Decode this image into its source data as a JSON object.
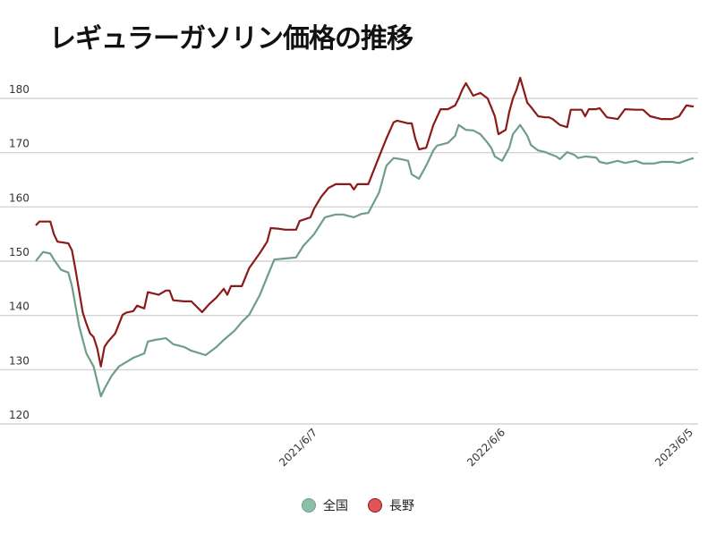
{
  "chart_data": {
    "type": "line",
    "title": "レギュラーガソリン価格の推移",
    "xlabel": "",
    "ylabel": "",
    "xlim": [
      0,
      182
    ],
    "ylim": [
      120,
      184
    ],
    "yticks": [
      120,
      130,
      140,
      150,
      160,
      170,
      180
    ],
    "xticks": [
      {
        "week": 78,
        "label": "2021/6/7"
      },
      {
        "week": 130,
        "label": "2022/6/6"
      },
      {
        "week": 182,
        "label": "2023/6/5"
      }
    ],
    "grid": true,
    "legend_position": "bottom",
    "series": [
      {
        "name": "全国",
        "color": "#6e9e88",
        "fill": "#8cc0a6",
        "points": [
          [
            0,
            150.0
          ],
          [
            2,
            151.7
          ],
          [
            4,
            151.4
          ],
          [
            5,
            150.3
          ],
          [
            7,
            148.4
          ],
          [
            9,
            147.9
          ],
          [
            10,
            145.4
          ],
          [
            12,
            138.0
          ],
          [
            14,
            133.0
          ],
          [
            16,
            130.6
          ],
          [
            18,
            125.1
          ],
          [
            19,
            126.5
          ],
          [
            21,
            128.9
          ],
          [
            23,
            130.6
          ],
          [
            25,
            131.4
          ],
          [
            27,
            132.2
          ],
          [
            30,
            133.0
          ],
          [
            31,
            135.2
          ],
          [
            33,
            135.5
          ],
          [
            36,
            135.8
          ],
          [
            38,
            134.7
          ],
          [
            41,
            134.2
          ],
          [
            43,
            133.5
          ],
          [
            47,
            132.7
          ],
          [
            50,
            134.2
          ],
          [
            52,
            135.5
          ],
          [
            55,
            137.2
          ],
          [
            57,
            138.8
          ],
          [
            59,
            140.1
          ],
          [
            62,
            143.8
          ],
          [
            64,
            147.1
          ],
          [
            66,
            150.3
          ],
          [
            69,
            150.5
          ],
          [
            72,
            150.7
          ],
          [
            74,
            152.8
          ],
          [
            77,
            155.0
          ],
          [
            80,
            158.1
          ],
          [
            83,
            158.6
          ],
          [
            85,
            158.6
          ],
          [
            88,
            158.1
          ],
          [
            90,
            158.7
          ],
          [
            92,
            158.9
          ],
          [
            95,
            162.7
          ],
          [
            97,
            167.6
          ],
          [
            99,
            169.0
          ],
          [
            101,
            168.8
          ],
          [
            103,
            168.5
          ],
          [
            104,
            166.0
          ],
          [
            106,
            165.2
          ],
          [
            108,
            167.6
          ],
          [
            110,
            170.4
          ],
          [
            111,
            171.3
          ],
          [
            114,
            171.8
          ],
          [
            116,
            173.1
          ],
          [
            117,
            175.1
          ],
          [
            119,
            174.2
          ],
          [
            121,
            174.1
          ],
          [
            123,
            173.4
          ],
          [
            125,
            171.8
          ],
          [
            126,
            170.9
          ],
          [
            127,
            169.3
          ],
          [
            129,
            168.5
          ],
          [
            131,
            170.9
          ],
          [
            132,
            173.4
          ],
          [
            134,
            175.1
          ],
          [
            136,
            173.1
          ],
          [
            137,
            171.4
          ],
          [
            139,
            170.4
          ],
          [
            141,
            170.1
          ],
          [
            142,
            169.8
          ],
          [
            144,
            169.3
          ],
          [
            145,
            168.8
          ],
          [
            147,
            170.1
          ],
          [
            149,
            169.6
          ],
          [
            150,
            169.0
          ],
          [
            152,
            169.3
          ],
          [
            155,
            169.1
          ],
          [
            156,
            168.3
          ],
          [
            158,
            168.0
          ],
          [
            161,
            168.5
          ],
          [
            163,
            168.1
          ],
          [
            166,
            168.5
          ],
          [
            168,
            168.0
          ],
          [
            171,
            168.0
          ],
          [
            173,
            168.3
          ],
          [
            176,
            168.3
          ],
          [
            178,
            168.1
          ],
          [
            181,
            168.8
          ],
          [
            182,
            169.0
          ]
        ]
      },
      {
        "name": "長野",
        "color": "#8b1a1a",
        "fill": "#e05555",
        "points": [
          [
            0,
            156.6
          ],
          [
            1,
            157.3
          ],
          [
            4,
            157.3
          ],
          [
            5,
            155.0
          ],
          [
            6,
            153.6
          ],
          [
            9,
            153.3
          ],
          [
            10,
            152.0
          ],
          [
            11,
            148.4
          ],
          [
            13,
            140.5
          ],
          [
            14,
            138.5
          ],
          [
            15,
            136.7
          ],
          [
            16,
            136.0
          ],
          [
            17,
            133.9
          ],
          [
            18,
            130.6
          ],
          [
            19,
            134.2
          ],
          [
            20,
            135.2
          ],
          [
            22,
            136.7
          ],
          [
            24,
            140.1
          ],
          [
            25,
            140.5
          ],
          [
            27,
            140.8
          ],
          [
            28,
            141.8
          ],
          [
            30,
            141.3
          ],
          [
            31,
            144.3
          ],
          [
            34,
            143.8
          ],
          [
            36,
            144.6
          ],
          [
            37,
            144.6
          ],
          [
            38,
            142.8
          ],
          [
            41,
            142.6
          ],
          [
            43,
            142.6
          ],
          [
            45,
            141.3
          ],
          [
            46,
            140.6
          ],
          [
            48,
            142.1
          ],
          [
            50,
            143.3
          ],
          [
            52,
            144.9
          ],
          [
            53,
            143.8
          ],
          [
            54,
            145.4
          ],
          [
            56,
            145.4
          ],
          [
            57,
            145.4
          ],
          [
            59,
            148.7
          ],
          [
            62,
            151.5
          ],
          [
            64,
            153.6
          ],
          [
            65,
            156.1
          ],
          [
            67,
            156.0
          ],
          [
            69,
            155.8
          ],
          [
            72,
            155.8
          ],
          [
            73,
            157.4
          ],
          [
            76,
            158.1
          ],
          [
            77,
            159.7
          ],
          [
            79,
            161.9
          ],
          [
            81,
            163.5
          ],
          [
            83,
            164.2
          ],
          [
            87,
            164.2
          ],
          [
            88,
            163.2
          ],
          [
            89,
            164.2
          ],
          [
            92,
            164.2
          ],
          [
            94,
            167.6
          ],
          [
            97,
            172.6
          ],
          [
            99,
            175.6
          ],
          [
            100,
            175.9
          ],
          [
            103,
            175.4
          ],
          [
            104,
            175.4
          ],
          [
            105,
            172.6
          ],
          [
            106,
            170.6
          ],
          [
            108,
            170.9
          ],
          [
            110,
            175.1
          ],
          [
            112,
            178.0
          ],
          [
            114,
            178.0
          ],
          [
            116,
            178.7
          ],
          [
            117,
            180.0
          ],
          [
            118,
            181.6
          ],
          [
            119,
            182.8
          ],
          [
            121,
            180.5
          ],
          [
            123,
            181.0
          ],
          [
            125,
            180.0
          ],
          [
            126,
            178.4
          ],
          [
            127,
            176.7
          ],
          [
            128,
            173.4
          ],
          [
            130,
            174.2
          ],
          [
            131,
            177.5
          ],
          [
            132,
            180.0
          ],
          [
            133,
            181.6
          ],
          [
            134,
            183.8
          ],
          [
            136,
            179.2
          ],
          [
            137,
            178.4
          ],
          [
            139,
            176.7
          ],
          [
            141,
            176.5
          ],
          [
            142,
            176.5
          ],
          [
            143,
            176.2
          ],
          [
            145,
            175.1
          ],
          [
            147,
            174.7
          ],
          [
            148,
            177.9
          ],
          [
            150,
            177.9
          ],
          [
            151,
            177.9
          ],
          [
            152,
            176.7
          ],
          [
            153,
            178.0
          ],
          [
            155,
            178.0
          ],
          [
            156,
            178.2
          ],
          [
            158,
            176.5
          ],
          [
            161,
            176.2
          ],
          [
            163,
            178.0
          ],
          [
            166,
            177.9
          ],
          [
            168,
            177.9
          ],
          [
            170,
            176.7
          ],
          [
            173,
            176.2
          ],
          [
            176,
            176.2
          ],
          [
            178,
            176.7
          ],
          [
            180,
            178.7
          ],
          [
            182,
            178.5
          ]
        ]
      }
    ]
  }
}
